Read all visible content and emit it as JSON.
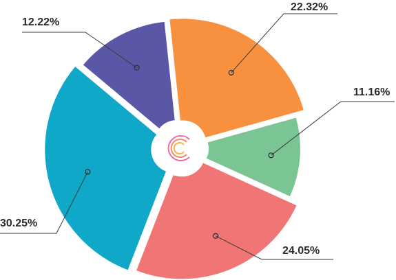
{
  "chart_data": {
    "type": "pie",
    "title": "",
    "slices": [
      {
        "label": "22.32%",
        "value": 22.32,
        "color": "#F7913F"
      },
      {
        "label": "11.16%",
        "value": 11.16,
        "color": "#7BC594"
      },
      {
        "label": "24.05%",
        "value": 24.05,
        "color": "#F07676"
      },
      {
        "label": "30.25%",
        "value": 30.25,
        "color": "#0FA8C8"
      },
      {
        "label": "12.22%",
        "value": 12.22,
        "color": "#5A58A6"
      }
    ],
    "center_logo": "c-logo-icon",
    "legend": "none"
  }
}
